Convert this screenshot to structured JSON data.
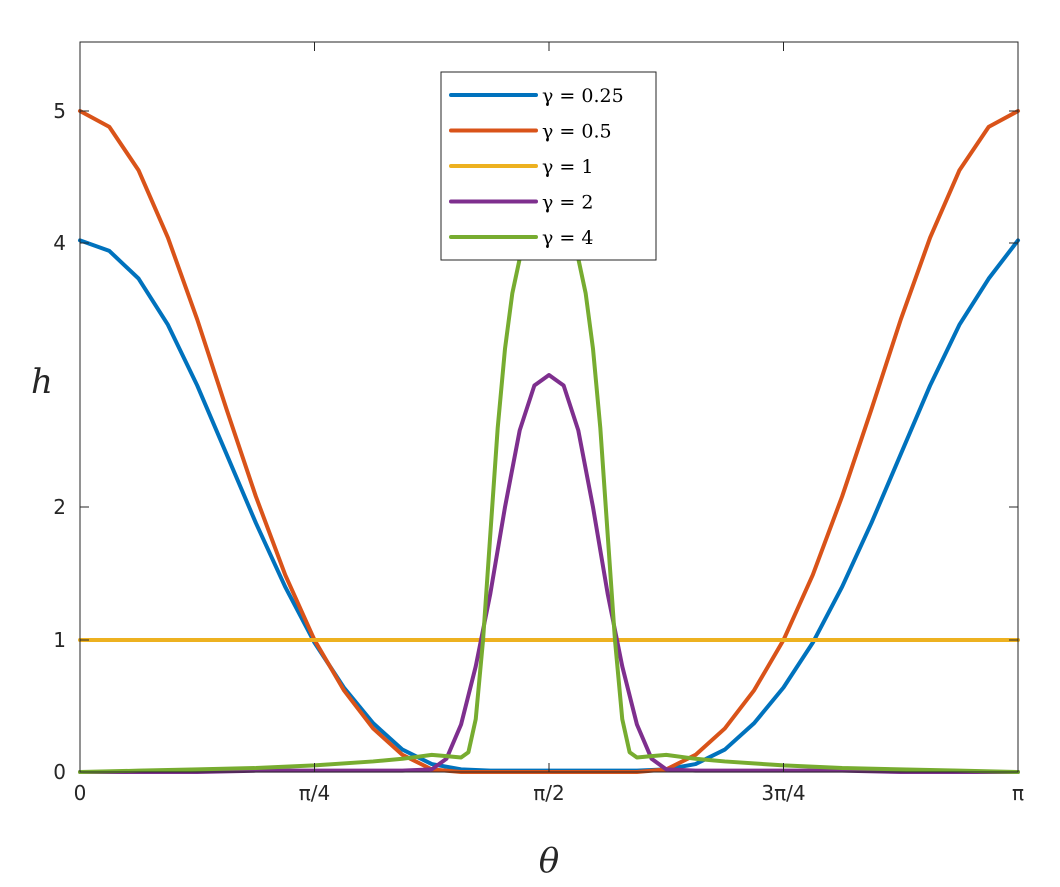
{
  "chart_data": {
    "type": "line",
    "xlabel": "θ",
    "ylabel": "h",
    "xlim": [
      0,
      3.14159265
    ],
    "ylim": [
      0,
      5.5
    ],
    "y_scale": "piecewise-linear",
    "y_scale_knots": [
      [
        0,
        0
      ],
      [
        1,
        1
      ],
      [
        2,
        2
      ],
      [
        4,
        4
      ],
      [
        5,
        5
      ],
      [
        5.5,
        5.5
      ]
    ],
    "x_ticks": [
      0,
      0.78539816,
      1.57079633,
      2.35619449,
      3.14159265
    ],
    "x_tick_labels": [
      "0",
      "π/4",
      "π/2",
      "3π/4",
      "π"
    ],
    "y_ticks": [
      0,
      1,
      2,
      4,
      5
    ],
    "y_tick_labels": [
      "0",
      "1",
      "2",
      "4",
      "5"
    ],
    "grid": false,
    "legend_position": "top-center",
    "series": [
      {
        "name": "γ = 0.25",
        "color": "#0072BD",
        "x": [
          0,
          0.0982,
          0.1963,
          0.2945,
          0.3927,
          0.4909,
          0.589,
          0.6872,
          0.7854,
          0.8836,
          0.9817,
          1.0799,
          1.1781,
          1.2763,
          1.3744,
          1.4726,
          1.5708,
          1.669,
          1.7671,
          1.8653,
          1.9635,
          2.0617,
          2.1598,
          2.258,
          2.3562,
          2.4544,
          2.5525,
          2.6507,
          2.7489,
          2.8471,
          2.9452,
          3.0434,
          3.1416
        ],
        "y": [
          4.02,
          3.94,
          3.73,
          3.38,
          2.92,
          2.4,
          1.88,
          1.4,
          0.98,
          0.64,
          0.37,
          0.17,
          0.06,
          0.02,
          0.01,
          0.01,
          0.01,
          0.01,
          0.01,
          0.01,
          0.02,
          0.06,
          0.17,
          0.37,
          0.64,
          0.98,
          1.4,
          1.88,
          2.4,
          2.92,
          3.38,
          3.73,
          4.02
        ]
      },
      {
        "name": "γ = 0.5",
        "color": "#D95319",
        "x": [
          0,
          0.0982,
          0.1963,
          0.2945,
          0.3927,
          0.4909,
          0.589,
          0.6872,
          0.7854,
          0.8836,
          0.9817,
          1.0799,
          1.1781,
          1.2763,
          1.3744,
          1.4726,
          1.5708,
          1.669,
          1.7671,
          1.8653,
          1.9635,
          2.0617,
          2.1598,
          2.258,
          2.3562,
          2.4544,
          2.5525,
          2.6507,
          2.7489,
          2.8471,
          2.9452,
          3.0434,
          3.1416
        ],
        "y": [
          5.0,
          4.88,
          4.55,
          4.04,
          3.42,
          2.74,
          2.08,
          1.49,
          1.0,
          0.62,
          0.33,
          0.13,
          0.02,
          0.0,
          0.0,
          0.0,
          0.0,
          0.0,
          0.0,
          0.0,
          0.02,
          0.13,
          0.33,
          0.62,
          1.0,
          1.49,
          2.08,
          2.74,
          3.42,
          4.04,
          4.55,
          4.88,
          5.0
        ]
      },
      {
        "name": "γ = 1",
        "color": "#EDB120",
        "x": [
          0,
          3.1416
        ],
        "y": [
          1,
          1
        ]
      },
      {
        "name": "γ = 2",
        "color": "#7E2F8E",
        "x": [
          0,
          0.1963,
          0.3927,
          0.589,
          0.7854,
          0.9817,
          1.0799,
          1.1781,
          1.2272,
          1.2763,
          1.3254,
          1.3744,
          1.4235,
          1.4726,
          1.5217,
          1.5708,
          1.6199,
          1.669,
          1.7181,
          1.7671,
          1.8162,
          1.8653,
          1.9144,
          1.9635,
          2.0617,
          2.1598,
          2.3562,
          2.5525,
          2.7489,
          2.9452,
          3.1416
        ],
        "y": [
          0.0,
          0.0,
          0.0,
          0.01,
          0.01,
          0.01,
          0.01,
          0.02,
          0.1,
          0.36,
          0.8,
          1.35,
          2.0,
          2.58,
          2.92,
          3.0,
          2.92,
          2.58,
          2.0,
          1.35,
          0.8,
          0.36,
          0.1,
          0.02,
          0.01,
          0.01,
          0.01,
          0.01,
          0.0,
          0.0,
          0.0
        ]
      },
      {
        "name": "γ = 4",
        "color": "#77AC30",
        "x": [
          0,
          0.1963,
          0.3927,
          0.589,
          0.7854,
          0.9817,
          1.0799,
          1.1781,
          1.2272,
          1.2763,
          1.3009,
          1.3254,
          1.3499,
          1.3744,
          1.399,
          1.4235,
          1.448,
          1.4726,
          1.4971,
          1.5217,
          1.5463,
          1.5708,
          1.5953,
          1.6199,
          1.6444,
          1.669,
          1.6935,
          1.7181,
          1.7426,
          1.7671,
          1.7917,
          1.8162,
          1.8407,
          1.8653,
          1.9144,
          1.9635,
          2.0617,
          2.1598,
          2.3562,
          2.5525,
          2.7489,
          2.9452,
          3.1416
        ],
        "y": [
          0.0,
          0.01,
          0.02,
          0.03,
          0.05,
          0.08,
          0.1,
          0.13,
          0.12,
          0.11,
          0.15,
          0.4,
          1.0,
          1.8,
          2.6,
          3.2,
          3.62,
          3.88,
          3.97,
          4.02,
          4.02,
          3.97,
          4.02,
          4.02,
          3.97,
          3.88,
          3.62,
          3.2,
          2.6,
          1.8,
          1.0,
          0.4,
          0.15,
          0.11,
          0.12,
          0.13,
          0.1,
          0.08,
          0.05,
          0.03,
          0.02,
          0.01,
          0.0
        ]
      }
    ]
  }
}
